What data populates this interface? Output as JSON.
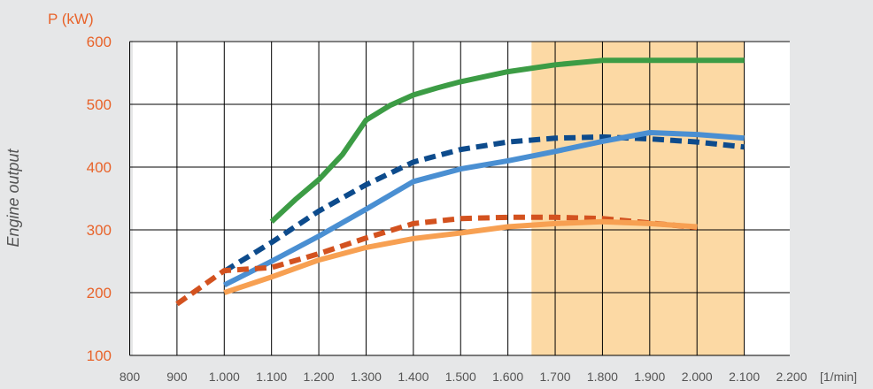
{
  "chart_data": {
    "type": "line",
    "ylabel": "Engine output",
    "y_unit": "P (kW)",
    "x_unit": "[1/min]",
    "xlim": [
      800,
      2200
    ],
    "ylim": [
      100,
      600
    ],
    "x_ticks": [
      800,
      900,
      1000,
      1100,
      1200,
      1300,
      1400,
      1500,
      1600,
      1700,
      1800,
      1900,
      2000,
      2100,
      2200
    ],
    "x_tick_labels": [
      "800",
      "900",
      "1.000",
      "1.100",
      "1.200",
      "1.300",
      "1.400",
      "1.500",
      "1.600",
      "1.700",
      "1.800",
      "1.900",
      "2.000",
      "2.100",
      "2.200"
    ],
    "y_ticks": [
      100,
      200,
      300,
      400,
      500,
      600
    ],
    "y_tick_labels": [
      "100",
      "200",
      "300",
      "400",
      "500",
      "600"
    ],
    "grid": true,
    "highlight_band": {
      "x_from": 1650,
      "x_to": 2100,
      "color": "#fcd9a4"
    },
    "colors": {
      "plot_background": "#ffffff",
      "grid": "#000000",
      "y_ticks": "#e8632a",
      "x_ticks": "#555555"
    },
    "series": [
      {
        "color": "#3c9c45",
        "dashed": false,
        "points": [
          [
            1100,
            313
          ],
          [
            1150,
            348
          ],
          [
            1200,
            380
          ],
          [
            1250,
            420
          ],
          [
            1300,
            475
          ],
          [
            1350,
            498
          ],
          [
            1400,
            515
          ],
          [
            1450,
            526
          ],
          [
            1500,
            536
          ],
          [
            1600,
            552
          ],
          [
            1700,
            563
          ],
          [
            1800,
            570
          ],
          [
            1900,
            570
          ],
          [
            2000,
            570
          ],
          [
            2100,
            570
          ]
        ]
      },
      {
        "color": "#0d4b8c",
        "dashed": true,
        "points": [
          [
            1000,
            234
          ],
          [
            1100,
            280
          ],
          [
            1200,
            330
          ],
          [
            1300,
            372
          ],
          [
            1400,
            408
          ],
          [
            1500,
            428
          ],
          [
            1600,
            440
          ],
          [
            1700,
            446
          ],
          [
            1800,
            448
          ],
          [
            1900,
            445
          ],
          [
            2000,
            440
          ],
          [
            2100,
            432
          ]
        ]
      },
      {
        "color": "#4a8fd2",
        "dashed": false,
        "points": [
          [
            1000,
            212
          ],
          [
            1100,
            250
          ],
          [
            1200,
            290
          ],
          [
            1300,
            333
          ],
          [
            1400,
            377
          ],
          [
            1500,
            397
          ],
          [
            1600,
            410
          ],
          [
            1700,
            425
          ],
          [
            1800,
            441
          ],
          [
            1900,
            455
          ],
          [
            2000,
            452
          ],
          [
            2100,
            446
          ]
        ]
      },
      {
        "color": "#d3521f",
        "dashed": true,
        "points": [
          [
            900,
            182
          ],
          [
            1000,
            235
          ],
          [
            1100,
            240
          ],
          [
            1200,
            262
          ],
          [
            1300,
            287
          ],
          [
            1400,
            310
          ],
          [
            1500,
            318
          ],
          [
            1600,
            320
          ],
          [
            1700,
            320
          ],
          [
            1800,
            318
          ],
          [
            1900,
            311
          ],
          [
            2000,
            304
          ]
        ]
      },
      {
        "color": "#f7a052",
        "dashed": false,
        "points": [
          [
            1000,
            200
          ],
          [
            1100,
            225
          ],
          [
            1200,
            252
          ],
          [
            1300,
            272
          ],
          [
            1400,
            286
          ],
          [
            1500,
            295
          ],
          [
            1600,
            305
          ],
          [
            1700,
            310
          ],
          [
            1800,
            313
          ],
          [
            1900,
            310
          ],
          [
            2000,
            305
          ]
        ]
      }
    ]
  }
}
